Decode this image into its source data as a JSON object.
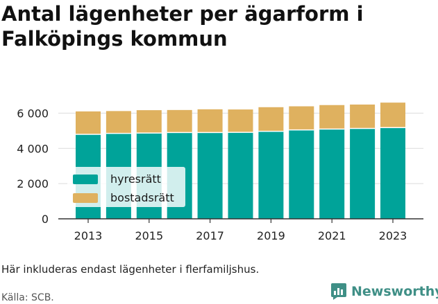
{
  "title": "Antal lägenheter per ägarform i Falköpings kommun",
  "note": "Här inkluderas endast lägenheter i flerfamiljshus.",
  "source": "Källa: SCB.",
  "brand": {
    "name": "Newsworthy",
    "icon": "newsworthy-logo-icon",
    "color": "#3f8f86"
  },
  "colors": {
    "hyresratt": "#00a399",
    "bostadsratt": "#dfb15f",
    "grid": "#dcdcdc"
  },
  "chart_data": {
    "type": "bar",
    "stacked": true,
    "categories": [
      "2013",
      "2014",
      "2015",
      "2016",
      "2017",
      "2018",
      "2019",
      "2020",
      "2021",
      "2022",
      "2023"
    ],
    "x_tick_labels": [
      "2013",
      "2015",
      "2017",
      "2019",
      "2021",
      "2023"
    ],
    "series": [
      {
        "name": "hyresrätt",
        "color": "#00a399",
        "values": [
          4800,
          4850,
          4870,
          4900,
          4900,
          4910,
          4970,
          5050,
          5100,
          5130,
          5180
        ]
      },
      {
        "name": "bostadsrätt",
        "color": "#dfb15f",
        "values": [
          1300,
          1270,
          1300,
          1280,
          1320,
          1300,
          1370,
          1340,
          1360,
          1360,
          1420
        ]
      }
    ],
    "ylim": [
      0,
      7000
    ],
    "y_ticks": [
      0,
      2000,
      4000,
      6000
    ],
    "y_tick_labels": [
      "0",
      "2 000",
      "4 000",
      "6 000"
    ],
    "grid": true,
    "legend_position": "bottom-left"
  }
}
